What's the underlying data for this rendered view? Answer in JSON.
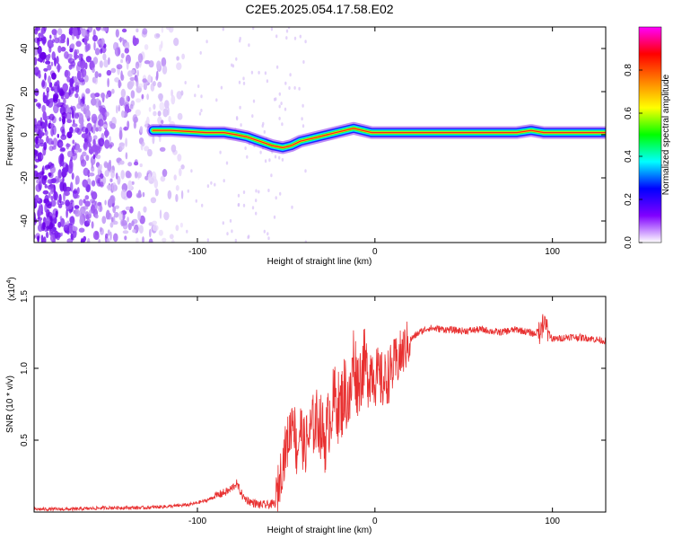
{
  "chart_data": [
    {
      "type": "heatmap",
      "title": "C2E5.2025.054.17.58.E02",
      "xlabel": "Height of straight line (km)",
      "ylabel": "Frequency (Hz)",
      "xlim": [
        -192,
        130
      ],
      "ylim": [
        -50,
        50
      ],
      "x_ticks": [
        -100,
        0,
        100
      ],
      "y_ticks": [
        -40,
        -20,
        0,
        20,
        40
      ],
      "noise_region_x": [
        -192,
        -108
      ],
      "ridge": {
        "x": [
          -125,
          -115,
          -105,
          -95,
          -85,
          -78,
          -72,
          -65,
          -58,
          -52,
          -47,
          -42,
          -37,
          -32,
          -27,
          -22,
          -17,
          -12,
          -7,
          -2,
          5,
          15,
          30,
          50,
          70,
          80,
          88,
          95,
          105,
          120,
          130
        ],
        "y": [
          2,
          2,
          1.5,
          1,
          1,
          0,
          -1,
          -3,
          -5,
          -6,
          -5,
          -3,
          -2,
          -1,
          0,
          1,
          2,
          3,
          2,
          1,
          1,
          1,
          1,
          1,
          1,
          1,
          2,
          1,
          1,
          1,
          1
        ]
      },
      "colorbar": {
        "label": "Normalized spectral amplitude",
        "range": [
          0,
          1
        ],
        "ticks": [
          0.0,
          0.2,
          0.4,
          0.6,
          0.8
        ],
        "tick_labels": [
          "0.0",
          "0.2",
          "0.4",
          "0.6",
          "0.8"
        ],
        "colors": [
          "#ffffff",
          "#8000ff",
          "#0000ff",
          "#00ffff",
          "#00ff00",
          "#ffff00",
          "#ff8000",
          "#ff0000",
          "#ff00ff"
        ]
      }
    },
    {
      "type": "line",
      "title": "",
      "xlabel": "Height of straight line (km)",
      "ylabel": "SNR (10 * v/v)",
      "scale_label": "(x10",
      "scale_exponent": "4",
      "scale_close": ")",
      "xlim": [
        -192,
        130
      ],
      "ylim": [
        0,
        1.5
      ],
      "x_ticks": [
        -100,
        0,
        100
      ],
      "y_ticks": [
        0.5,
        1.0,
        1.5
      ],
      "y_tick_labels": [
        "0.5",
        "1.0",
        "1.5"
      ],
      "color": "#e83030",
      "series": [
        {
          "x": [
            -192,
            -170,
            -150,
            -130,
            -115,
            -105,
            -95,
            -88,
            -82,
            -78,
            -74,
            -70,
            -65,
            -60,
            -56,
            -52,
            -48,
            -46,
            -44,
            -42,
            -40,
            -38,
            -35,
            -32,
            -28,
            -25,
            -22,
            -20,
            -17,
            -14,
            -12,
            -10,
            -8,
            -6,
            -4,
            -2,
            0,
            5,
            10,
            15,
            20,
            25,
            30,
            40,
            50,
            60,
            70,
            80,
            90,
            96,
            100,
            110,
            120,
            130
          ],
          "y": [
            0.02,
            0.02,
            0.03,
            0.03,
            0.04,
            0.05,
            0.08,
            0.12,
            0.15,
            0.2,
            0.1,
            0.07,
            0.05,
            0.05,
            0.06,
            0.35,
            0.55,
            0.7,
            0.4,
            0.6,
            0.45,
            0.5,
            0.6,
            0.65,
            0.5,
            0.7,
            0.8,
            0.7,
            0.85,
            0.75,
            1.1,
            0.9,
            0.95,
            1.05,
            0.95,
            1.0,
            0.95,
            0.9,
            1.0,
            1.1,
            1.2,
            1.25,
            1.28,
            1.27,
            1.26,
            1.27,
            1.25,
            1.27,
            1.24,
            1.3,
            1.2,
            1.22,
            1.21,
            1.19
          ]
        }
      ]
    }
  ]
}
